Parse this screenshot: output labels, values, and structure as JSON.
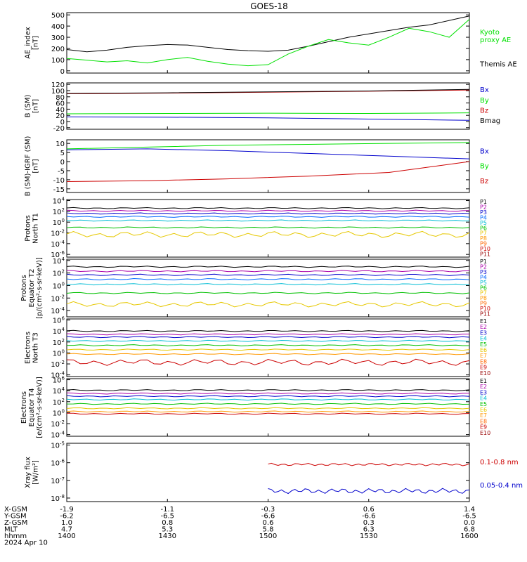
{
  "title": "GOES-18",
  "colors": {
    "black": "#000000",
    "green": "#00e000",
    "blue": "#0000cc",
    "red": "#cc0000",
    "cyan": "#00bcd4",
    "yellow": "#e6c800",
    "orange": "#ff9900",
    "purple": "#aa00aa"
  },
  "x_axis": {
    "tick_fracs": [
      0,
      0.25,
      0.5,
      0.75,
      1
    ],
    "rows": [
      {
        "label": "X-GSM",
        "values": [
          "-1.9",
          "-1.1",
          "-0.3",
          "0.6",
          "1.4"
        ]
      },
      {
        "label": "Y-GSM",
        "values": [
          "-6.2",
          "-6.5",
          "-6.6",
          "-6.6",
          "-6.5"
        ]
      },
      {
        "label": "Z-GSM",
        "values": [
          "1.0",
          "0.8",
          "0.6",
          "0.3",
          "0.0"
        ]
      },
      {
        "label": "MLT",
        "values": [
          "4.7",
          "5.3",
          "5.8",
          "6.3",
          "6.8"
        ]
      },
      {
        "label": "hhmm",
        "values": [
          "1400",
          "1430",
          "1500",
          "1530",
          "1600"
        ]
      }
    ],
    "date": "2024 Apr 10"
  },
  "chart_data": [
    {
      "type": "line",
      "ylabel": "AE_index\n[nT]",
      "ylim": [
        -20,
        520
      ],
      "yticks": [
        "0",
        "100",
        "200",
        "300",
        "400",
        "500"
      ],
      "ytick_values": [
        0,
        100,
        200,
        300,
        400,
        500
      ],
      "legend": [
        {
          "text": "Kyoto\nproxy AE",
          "color": "#00e000"
        },
        {
          "text": "Themis AE",
          "color": "#000000"
        }
      ],
      "series": [
        {
          "name": "Themis AE",
          "color": "#000000",
          "points": [
            [
              0,
              190
            ],
            [
              0.05,
              170
            ],
            [
              0.1,
              185
            ],
            [
              0.15,
              210
            ],
            [
              0.2,
              225
            ],
            [
              0.25,
              235
            ],
            [
              0.3,
              230
            ],
            [
              0.35,
              210
            ],
            [
              0.4,
              190
            ],
            [
              0.45,
              180
            ],
            [
              0.5,
              175
            ],
            [
              0.55,
              185
            ],
            [
              0.6,
              220
            ],
            [
              0.65,
              260
            ],
            [
              0.7,
              300
            ],
            [
              0.75,
              330
            ],
            [
              0.8,
              360
            ],
            [
              0.85,
              390
            ],
            [
              0.9,
              410
            ],
            [
              0.95,
              450
            ],
            [
              1.0,
              490
            ]
          ]
        },
        {
          "name": "Kyoto proxy AE",
          "color": "#00e000",
          "points": [
            [
              0,
              110
            ],
            [
              0.05,
              95
            ],
            [
              0.1,
              80
            ],
            [
              0.15,
              90
            ],
            [
              0.2,
              70
            ],
            [
              0.25,
              100
            ],
            [
              0.3,
              120
            ],
            [
              0.35,
              85
            ],
            [
              0.4,
              60
            ],
            [
              0.45,
              45
            ],
            [
              0.5,
              55
            ],
            [
              0.55,
              150
            ],
            [
              0.6,
              220
            ],
            [
              0.65,
              280
            ],
            [
              0.7,
              250
            ],
            [
              0.75,
              230
            ],
            [
              0.8,
              300
            ],
            [
              0.85,
              380
            ],
            [
              0.9,
              350
            ],
            [
              0.95,
              300
            ],
            [
              1.0,
              460
            ]
          ]
        }
      ]
    },
    {
      "type": "line",
      "ylabel": "B (SM)\n[nT]",
      "ylim": [
        -25,
        125
      ],
      "yticks": [
        "-20",
        "0",
        "20",
        "40",
        "60",
        "80",
        "100",
        "120"
      ],
      "ytick_values": [
        -20,
        0,
        20,
        40,
        60,
        80,
        100,
        120
      ],
      "legend": [
        {
          "text": "Bx",
          "color": "#0000cc"
        },
        {
          "text": "By",
          "color": "#00e000"
        },
        {
          "text": "Bz",
          "color": "#cc0000"
        },
        {
          "text": "Bmag",
          "color": "#000000"
        }
      ],
      "series": [
        {
          "name": "Bz",
          "color": "#cc0000",
          "points": [
            [
              0,
              90
            ],
            [
              0.25,
              92
            ],
            [
              0.5,
              95
            ],
            [
              0.75,
              98
            ],
            [
              1.0,
              102
            ]
          ]
        },
        {
          "name": "Bmag",
          "color": "#000000",
          "points": [
            [
              0,
              91
            ],
            [
              0.25,
              93
            ],
            [
              0.5,
              96
            ],
            [
              0.75,
              99
            ],
            [
              1.0,
              104
            ]
          ]
        },
        {
          "name": "By",
          "color": "#00e000",
          "points": [
            [
              0,
              25
            ],
            [
              0.25,
              26
            ],
            [
              0.5,
              27
            ],
            [
              0.75,
              26
            ],
            [
              1.0,
              28
            ]
          ]
        },
        {
          "name": "Bx",
          "color": "#0000cc",
          "points": [
            [
              0,
              15
            ],
            [
              0.25,
              14
            ],
            [
              0.5,
              12
            ],
            [
              0.75,
              8
            ],
            [
              1.0,
              4
            ]
          ]
        }
      ]
    },
    {
      "type": "line",
      "ylabel": "B (SM)-IGRF (SM)\n[nT]",
      "ylim": [
        -17,
        12
      ],
      "yticks": [
        "-15",
        "-10",
        "-5",
        "0",
        "5",
        "10"
      ],
      "ytick_values": [
        -15,
        -10,
        -5,
        0,
        5,
        10
      ],
      "legend": [
        {
          "text": "Bx",
          "color": "#0000cc"
        },
        {
          "text": "By",
          "color": "#00e000"
        },
        {
          "text": "Bz",
          "color": "#cc0000"
        }
      ],
      "series": [
        {
          "name": "By",
          "color": "#00e000",
          "points": [
            [
              0,
              7
            ],
            [
              0.2,
              8
            ],
            [
              0.4,
              9
            ],
            [
              0.6,
              9.5
            ],
            [
              0.8,
              10
            ],
            [
              1.0,
              10.5
            ]
          ]
        },
        {
          "name": "Bx",
          "color": "#0000cc",
          "points": [
            [
              0,
              6.5
            ],
            [
              0.2,
              7
            ],
            [
              0.4,
              6
            ],
            [
              0.6,
              4.5
            ],
            [
              0.8,
              3
            ],
            [
              1.0,
              1.5
            ]
          ]
        },
        {
          "name": "Bz",
          "color": "#cc0000",
          "points": [
            [
              0,
              -11
            ],
            [
              0.2,
              -10.5
            ],
            [
              0.4,
              -9.5
            ],
            [
              0.6,
              -8
            ],
            [
              0.8,
              -6
            ],
            [
              1.0,
              0
            ]
          ]
        }
      ]
    },
    {
      "type": "line",
      "log": true,
      "ylabel": "Protons\nNorth T1",
      "ylim": [
        -6.5,
        4.2
      ],
      "yticks": [
        "10^4",
        "10^2",
        "10^0",
        "10^-2",
        "10^-4",
        "10^-6"
      ],
      "ytick_values": [
        4,
        2,
        0,
        -2,
        -4,
        -6
      ],
      "legend": [
        {
          "text": "P1",
          "color": "#000000"
        },
        {
          "text": "P2",
          "color": "#aa00aa"
        },
        {
          "text": "P3",
          "color": "#0000cc"
        },
        {
          "text": "P4",
          "color": "#0066ff"
        },
        {
          "text": "P5",
          "color": "#00bcd4"
        },
        {
          "text": "P6",
          "color": "#00c000"
        },
        {
          "text": "P7",
          "color": "#e6c800"
        },
        {
          "text": "P8",
          "color": "#ff9900"
        },
        {
          "text": "P9",
          "color": "#ff6600"
        },
        {
          "text": "P10",
          "color": "#cc0000"
        },
        {
          "text": "P11",
          "color": "#990000"
        }
      ],
      "series": [
        {
          "color": "#000000",
          "level": 2.6
        },
        {
          "color": "#aa00aa",
          "level": 2.1
        },
        {
          "color": "#0000cc",
          "level": 1.6
        },
        {
          "color": "#0066ff",
          "level": 1.0
        },
        {
          "color": "#00bcd4",
          "level": 0.3
        },
        {
          "color": "#00c000",
          "level": -1.0
        },
        {
          "color": "#e6c800",
          "level": -2.3,
          "wiggle": 0.4
        }
      ]
    },
    {
      "type": "line",
      "log": true,
      "ylabel": "Protons\nEquator T2\n[p/(cm²-s-sr-keV)]",
      "ylim": [
        -5,
        4.2
      ],
      "yticks": [
        "10^4",
        "10^2",
        "10^0",
        "10^-2",
        "10^-4"
      ],
      "ytick_values": [
        4,
        2,
        0,
        -2,
        -4
      ],
      "legend": [
        {
          "text": "P1",
          "color": "#000000"
        },
        {
          "text": "P2",
          "color": "#aa00aa"
        },
        {
          "text": "P3",
          "color": "#0000cc"
        },
        {
          "text": "P4",
          "color": "#0066ff"
        },
        {
          "text": "P5",
          "color": "#00bcd4"
        },
        {
          "text": "P6",
          "color": "#00c000"
        },
        {
          "text": "P7",
          "color": "#e6c800"
        },
        {
          "text": "P8",
          "color": "#ff9900"
        },
        {
          "text": "P9",
          "color": "#ff6600"
        },
        {
          "text": "P10",
          "color": "#cc0000"
        },
        {
          "text": "P11",
          "color": "#990000"
        }
      ],
      "series": [
        {
          "color": "#000000",
          "level": 3.0
        },
        {
          "color": "#aa00aa",
          "level": 2.3
        },
        {
          "color": "#0000cc",
          "level": 1.7
        },
        {
          "color": "#0066ff",
          "level": 1.0
        },
        {
          "color": "#00bcd4",
          "level": 0.2
        },
        {
          "color": "#00c000",
          "level": -1.2
        },
        {
          "color": "#e6c800",
          "level": -3.0,
          "wiggle": 0.3
        }
      ]
    },
    {
      "type": "line",
      "log": true,
      "ylabel": "Electrons\nNorth T3",
      "ylim": [
        -4.3,
        6.2
      ],
      "yticks": [
        "10^6",
        "10^4",
        "10^2",
        "10^0",
        "10^-2",
        "10^-4"
      ],
      "ytick_values": [
        6,
        4,
        2,
        0,
        -2,
        -4
      ],
      "legend": [
        {
          "text": "E1",
          "color": "#000000"
        },
        {
          "text": "E2",
          "color": "#aa00aa"
        },
        {
          "text": "E3",
          "color": "#0000cc"
        },
        {
          "text": "E4",
          "color": "#00bcd4"
        },
        {
          "text": "E5",
          "color": "#00c000"
        },
        {
          "text": "E6",
          "color": "#e6c800"
        },
        {
          "text": "E7",
          "color": "#ff9900"
        },
        {
          "text": "E8",
          "color": "#ff6600"
        },
        {
          "text": "E9",
          "color": "#cc0000"
        },
        {
          "text": "E10",
          "color": "#990000"
        }
      ],
      "series": [
        {
          "color": "#000000",
          "level": 4.0
        },
        {
          "color": "#aa00aa",
          "level": 3.4
        },
        {
          "color": "#0000cc",
          "level": 2.9
        },
        {
          "color": "#00bcd4",
          "level": 2.2
        },
        {
          "color": "#00c000",
          "level": 1.4
        },
        {
          "color": "#e6c800",
          "level": 0.6
        },
        {
          "color": "#ff9900",
          "level": -0.2
        },
        {
          "color": "#cc0000",
          "level": -1.7,
          "wiggle": 0.4
        }
      ]
    },
    {
      "type": "line",
      "log": true,
      "ylabel": "Electrons\nEquator T4\n[e/(cm²-s-sr-keV)]",
      "ylim": [
        -4.3,
        6.2
      ],
      "yticks": [
        "10^6",
        "10^4",
        "10^2",
        "10^0",
        "10^-2",
        "10^-4"
      ],
      "ytick_values": [
        6,
        4,
        2,
        0,
        -2,
        -4
      ],
      "legend": [
        {
          "text": "E1",
          "color": "#000000"
        },
        {
          "text": "E2",
          "color": "#aa00aa"
        },
        {
          "text": "E3",
          "color": "#0000cc"
        },
        {
          "text": "E4",
          "color": "#00bcd4"
        },
        {
          "text": "E5",
          "color": "#00c000"
        },
        {
          "text": "E6",
          "color": "#e6c800"
        },
        {
          "text": "E7",
          "color": "#ff9900"
        },
        {
          "text": "E8",
          "color": "#ff6600"
        },
        {
          "text": "E9",
          "color": "#cc0000"
        },
        {
          "text": "E10",
          "color": "#990000"
        }
      ],
      "series": [
        {
          "color": "#000000",
          "level": 4.1
        },
        {
          "color": "#aa00aa",
          "level": 3.5
        },
        {
          "color": "#0000cc",
          "level": 3.0
        },
        {
          "color": "#00bcd4",
          "level": 2.4
        },
        {
          "color": "#00c000",
          "level": 1.6
        },
        {
          "color": "#e6c800",
          "level": 0.8
        },
        {
          "color": "#ff9900",
          "level": 0.2
        },
        {
          "color": "#cc0000",
          "level": -0.2
        }
      ]
    },
    {
      "type": "line",
      "log": true,
      "ylabel": "Xray flux\n[W/m²]",
      "ylim": [
        -8.2,
        -4.9
      ],
      "yticks": [
        "10^-5",
        "10^-6",
        "10^-7",
        "10^-8"
      ],
      "ytick_values": [
        -5,
        -6,
        -7,
        -8
      ],
      "legend": [
        {
          "text": "0.1-0.8 nm",
          "color": "#cc0000"
        },
        {
          "text": "0.05-0.4 nm",
          "color": "#0000cc"
        }
      ],
      "series": [
        {
          "name": "0.1-0.8 nm",
          "color": "#cc0000",
          "level": -6.1,
          "start": 0.5,
          "wiggle": 0.05
        },
        {
          "name": "0.05-0.4 nm",
          "color": "#0000cc",
          "level": -7.6,
          "start": 0.5,
          "wiggle": 0.1
        }
      ]
    }
  ]
}
